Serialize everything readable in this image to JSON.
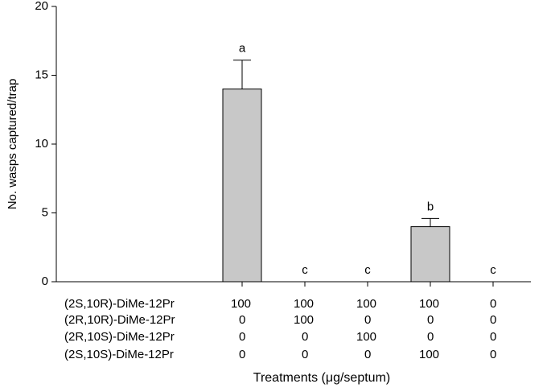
{
  "chart_data": {
    "type": "bar",
    "y_label": "No. wasps captured/trap",
    "x_label": "Treatments (μg/septum)",
    "values": [
      14,
      0,
      0,
      4,
      0
    ],
    "errors": [
      2.1,
      null,
      null,
      0.6,
      null
    ],
    "value_labels": [
      "a",
      "c",
      "c",
      "b",
      "c"
    ],
    "color": "#c8c8c8",
    "ylim": [
      0,
      20
    ],
    "yticks": [
      0,
      5,
      10,
      15,
      20
    ],
    "treatments": [
      {
        "label": "(2S,10R)-DiMe-12Pr",
        "doses": [
          "100",
          "100",
          "100",
          "100",
          "0"
        ]
      },
      {
        "label": "(2R,10R)-DiMe-12Pr",
        "doses": [
          "0",
          "100",
          "0",
          "0",
          "0"
        ]
      },
      {
        "label": "(2R,10S)-DiMe-12Pr",
        "doses": [
          "0",
          "0",
          "100",
          "0",
          "0"
        ]
      },
      {
        "label": "(2S,10S)-DiMe-12Pr",
        "doses": [
          "0",
          "0",
          "0",
          "100",
          "0"
        ]
      }
    ]
  }
}
